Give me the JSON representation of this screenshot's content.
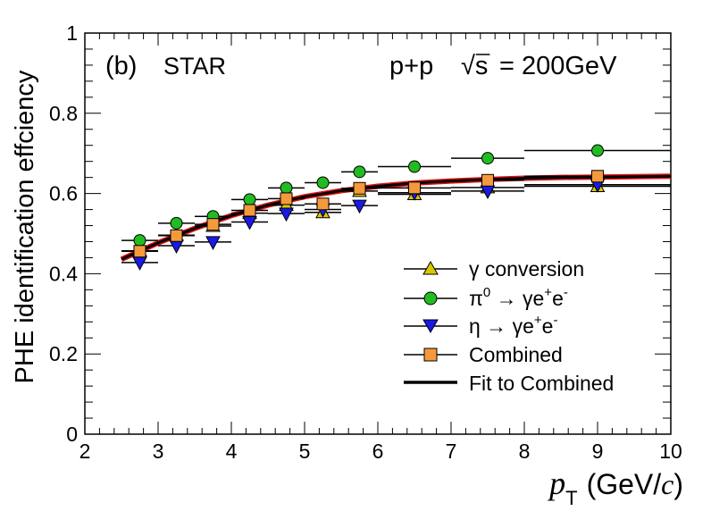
{
  "chart_data": {
    "type": "scatter",
    "panel_label": "(b)",
    "experiment_label": "STAR",
    "collision_label": "p+p",
    "energy_label_sqrt": "√s",
    "energy_label_value": "= 200GeV",
    "xlabel": "p",
    "xlabel_sub": "T",
    "xlabel_unit_open": "(GeV/",
    "xlabel_unit_c": "c",
    "xlabel_unit_close": ")",
    "ylabel": "PHE identification effciency",
    "xlim": [
      2,
      10
    ],
    "ylim": [
      0,
      1
    ],
    "x_ticks": [
      "2",
      "3",
      "4",
      "5",
      "6",
      "7",
      "8",
      "9",
      "10"
    ],
    "y_ticks": [
      "0",
      "0.2",
      "0.4",
      "0.6",
      "0.8",
      "1"
    ],
    "grid": false,
    "legend_position": "lower-right",
    "series": [
      {
        "name": "γ conversion",
        "marker": "triangle-up",
        "color": "#d9c800",
        "points": [
          {
            "x": 2.75,
            "y": 0.457,
            "xerr": 0.25
          },
          {
            "x": 3.25,
            "y": 0.496,
            "xerr": 0.25
          },
          {
            "x": 3.75,
            "y": 0.519,
            "xerr": 0.25
          },
          {
            "x": 4.25,
            "y": 0.551,
            "xerr": 0.25
          },
          {
            "x": 4.75,
            "y": 0.571,
            "xerr": 0.25
          },
          {
            "x": 5.25,
            "y": 0.553,
            "xerr": 0.25
          },
          {
            "x": 5.75,
            "y": 0.606,
            "xerr": 0.25
          },
          {
            "x": 6.5,
            "y": 0.598,
            "xerr": 0.5
          },
          {
            "x": 7.5,
            "y": 0.615,
            "xerr": 0.5
          },
          {
            "x": 9.0,
            "y": 0.618,
            "xerr": 1.0
          }
        ]
      },
      {
        "name_prefix": "π",
        "name_sup": "0",
        "name_rest": " → γe",
        "name_sup2": "+",
        "name_rest2": "e",
        "name_sup3": "-",
        "marker": "circle",
        "color": "#22bb22",
        "points": [
          {
            "x": 2.75,
            "y": 0.483,
            "xerr": 0.25
          },
          {
            "x": 3.25,
            "y": 0.526,
            "xerr": 0.25
          },
          {
            "x": 3.75,
            "y": 0.543,
            "xerr": 0.25
          },
          {
            "x": 4.25,
            "y": 0.585,
            "xerr": 0.25
          },
          {
            "x": 4.75,
            "y": 0.614,
            "xerr": 0.25
          },
          {
            "x": 5.25,
            "y": 0.627,
            "xerr": 0.25
          },
          {
            "x": 5.75,
            "y": 0.654,
            "xerr": 0.25
          },
          {
            "x": 6.5,
            "y": 0.667,
            "xerr": 0.5
          },
          {
            "x": 7.5,
            "y": 0.688,
            "xerr": 0.5
          },
          {
            "x": 9.0,
            "y": 0.707,
            "xerr": 1.0
          }
        ]
      },
      {
        "name_prefix": "η",
        "name_rest": " → γe",
        "name_sup2": "+",
        "name_rest2": "e",
        "name_sup3": "-",
        "marker": "triangle-down",
        "color": "#1a1ae6",
        "points": [
          {
            "x": 2.75,
            "y": 0.428,
            "xerr": 0.25
          },
          {
            "x": 3.25,
            "y": 0.47,
            "xerr": 0.25
          },
          {
            "x": 3.75,
            "y": 0.479,
            "xerr": 0.25
          },
          {
            "x": 4.25,
            "y": 0.529,
            "xerr": 0.25
          },
          {
            "x": 4.75,
            "y": 0.55,
            "xerr": 0.25
          },
          {
            "x": 5.25,
            "y": 0.56,
            "xerr": 0.25
          },
          {
            "x": 5.75,
            "y": 0.57,
            "xerr": 0.25
          },
          {
            "x": 6.5,
            "y": 0.602,
            "xerr": 0.5
          },
          {
            "x": 7.5,
            "y": 0.606,
            "xerr": 0.5
          },
          {
            "x": 9.0,
            "y": 0.622,
            "xerr": 1.0
          }
        ]
      },
      {
        "name": "Combined",
        "marker": "square",
        "color": "#f59a3c",
        "points": [
          {
            "x": 2.75,
            "y": 0.456,
            "xerr": 0.25
          },
          {
            "x": 3.25,
            "y": 0.495,
            "xerr": 0.25
          },
          {
            "x": 3.75,
            "y": 0.523,
            "xerr": 0.25
          },
          {
            "x": 4.25,
            "y": 0.558,
            "xerr": 0.25
          },
          {
            "x": 4.75,
            "y": 0.587,
            "xerr": 0.25
          },
          {
            "x": 5.25,
            "y": 0.574,
            "xerr": 0.25
          },
          {
            "x": 5.75,
            "y": 0.613,
            "xerr": 0.25
          },
          {
            "x": 6.5,
            "y": 0.614,
            "xerr": 0.5
          },
          {
            "x": 7.5,
            "y": 0.633,
            "xerr": 0.5
          },
          {
            "x": 9.0,
            "y": 0.643,
            "xerr": 1.0
          }
        ]
      }
    ],
    "fit": {
      "name": "Fit to Combined",
      "color": "#000000",
      "band_color": "#dd1111",
      "x": [
        2.5,
        3.0,
        3.5,
        4.0,
        4.5,
        5.0,
        5.5,
        6.0,
        6.5,
        7.0,
        7.5,
        8.0,
        8.5,
        9.0,
        9.5,
        10.0
      ],
      "y": [
        0.436,
        0.477,
        0.513,
        0.545,
        0.571,
        0.592,
        0.607,
        0.618,
        0.626,
        0.631,
        0.635,
        0.638,
        0.64,
        0.641,
        0.642,
        0.643
      ]
    }
  }
}
